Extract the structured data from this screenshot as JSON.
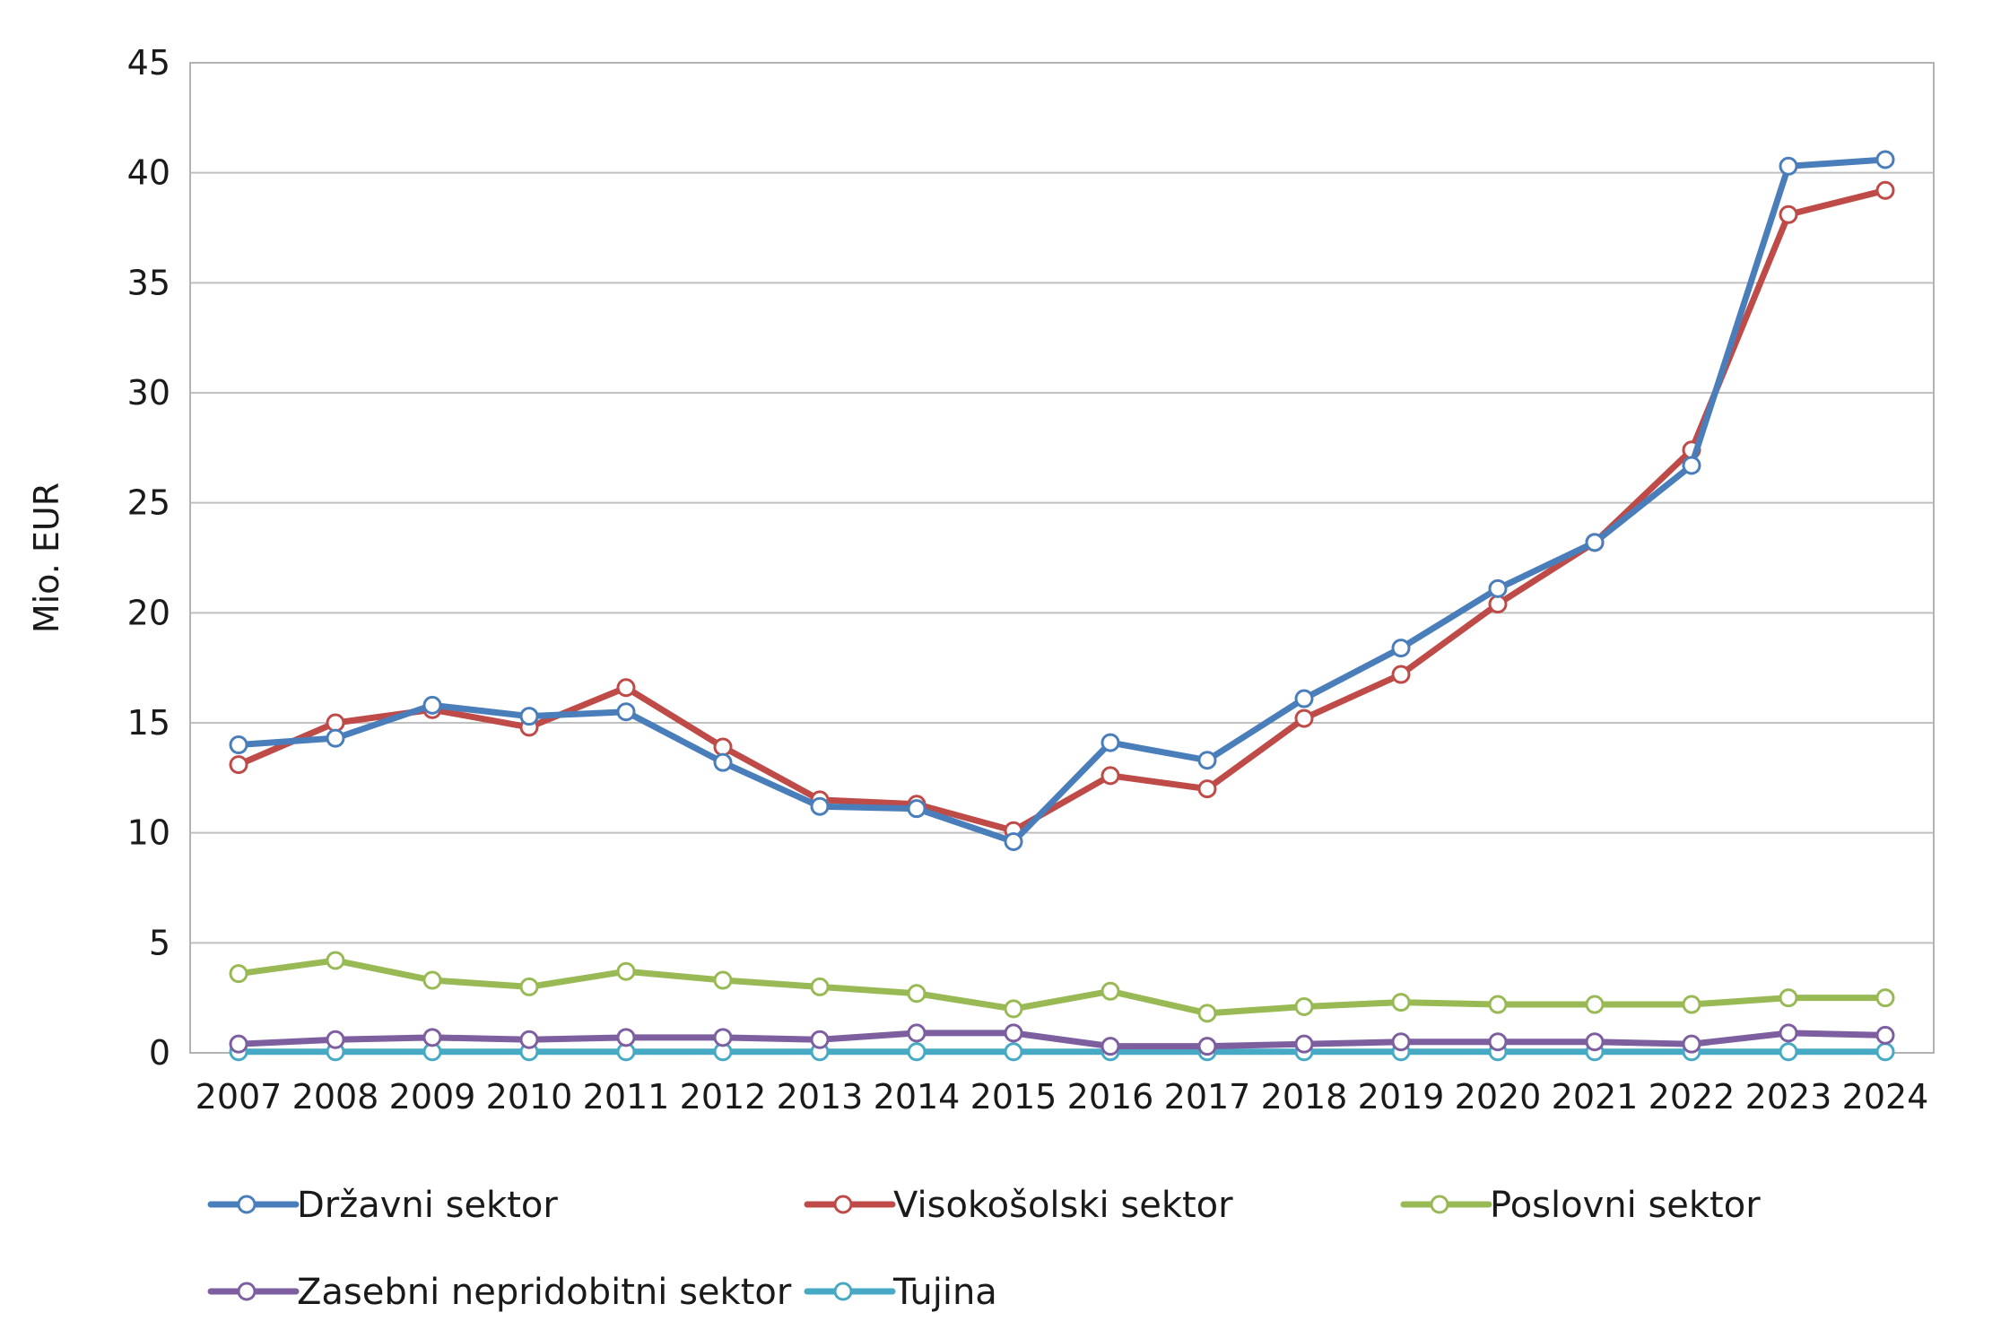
{
  "chart_data": {
    "type": "line",
    "ylabel": "Mio. EUR",
    "xlabel": "",
    "ylim": [
      0,
      45
    ],
    "yticks": [
      0,
      5,
      10,
      15,
      20,
      25,
      30,
      35,
      40,
      45
    ],
    "grid": true,
    "legend_position": "bottom",
    "categories": [
      "2007",
      "2008",
      "2009",
      "2010",
      "2011",
      "2012",
      "2013",
      "2014",
      "2015",
      "2016",
      "2017",
      "2018",
      "2019",
      "2020",
      "2021",
      "2022",
      "2023",
      "2024"
    ],
    "series": [
      {
        "name": "Državni sektor",
        "color": "#4a7ebb",
        "values": [
          14.0,
          14.3,
          15.8,
          15.3,
          15.5,
          13.2,
          11.2,
          11.1,
          9.6,
          14.1,
          13.3,
          16.1,
          18.4,
          21.1,
          23.2,
          26.7,
          40.3,
          40.6
        ]
      },
      {
        "name": "Visokošolski sektor",
        "color": "#be4b48",
        "values": [
          13.1,
          15.0,
          15.6,
          14.8,
          16.6,
          13.9,
          11.5,
          11.3,
          10.1,
          12.6,
          12.0,
          15.2,
          17.2,
          20.4,
          23.2,
          27.4,
          38.1,
          39.2
        ]
      },
      {
        "name": "Poslovni sektor",
        "color": "#98b954",
        "values": [
          3.6,
          4.2,
          3.3,
          3.0,
          3.7,
          3.3,
          3.0,
          2.7,
          2.0,
          2.8,
          1.8,
          2.1,
          2.3,
          2.2,
          2.2,
          2.2,
          2.5,
          2.5
        ]
      },
      {
        "name": "Zasebni nepridobitni sektor",
        "color": "#7d5fa0",
        "values": [
          0.4,
          0.6,
          0.7,
          0.6,
          0.7,
          0.7,
          0.6,
          0.9,
          0.9,
          0.3,
          0.3,
          0.4,
          0.5,
          0.5,
          0.5,
          0.4,
          0.9,
          0.8
        ]
      },
      {
        "name": "Tujina",
        "color": "#46aac4",
        "values": [
          0.05,
          0.05,
          0.05,
          0.05,
          0.05,
          0.05,
          0.05,
          0.05,
          0.05,
          0.05,
          0.05,
          0.05,
          0.05,
          0.05,
          0.05,
          0.05,
          0.05,
          0.05
        ]
      }
    ]
  }
}
